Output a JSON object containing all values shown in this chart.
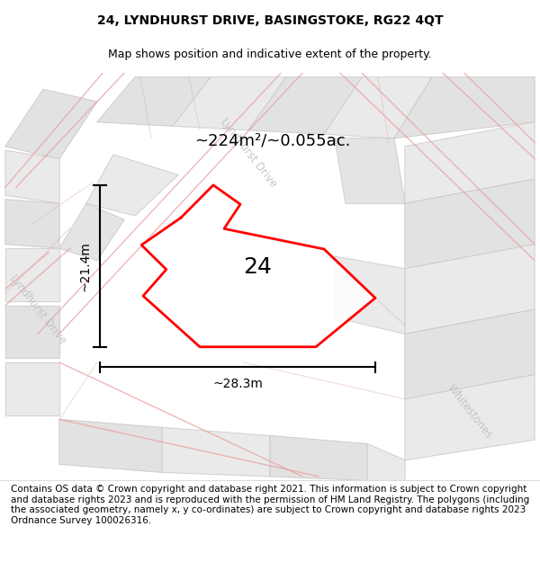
{
  "title": "24, LYNDHURST DRIVE, BASINGSTOKE, RG22 4QT",
  "subtitle": "Map shows position and indicative extent of the property.",
  "footer": "Contains OS data © Crown copyright and database right 2021. This information is subject to Crown copyright and database rights 2023 and is reproduced with the permission of HM Land Registry. The polygons (including the associated geometry, namely x, y co-ordinates) are subject to Crown copyright and database rights 2023 Ordnance Survey 100026316.",
  "area_label": "~224m²/~0.055ac.",
  "width_label": "~28.3m",
  "height_label": "~21.4m",
  "plot_number": "24",
  "map_bg": "#eeeeee",
  "polygon_color": "#ff0000",
  "title_fontsize": 10,
  "subtitle_fontsize": 9,
  "footer_fontsize": 7.5,
  "area_fontsize": 13,
  "dim_label_fontsize": 10,
  "plot_num_fontsize": 18
}
